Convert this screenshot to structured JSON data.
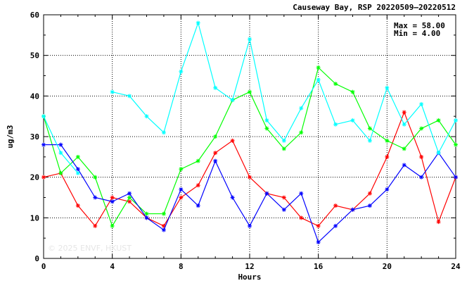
{
  "chart_data": {
    "type": "line",
    "title": "Causeway Bay, RSP 20220509–20220512",
    "xlabel": "Hours",
    "ylabel": "ug/m3",
    "xlim": [
      0,
      24
    ],
    "ylim": [
      0,
      60
    ],
    "x_ticks": [
      0,
      4,
      8,
      12,
      16,
      20,
      24
    ],
    "y_ticks": [
      0,
      10,
      20,
      30,
      40,
      50,
      60
    ],
    "grid": true,
    "stats": {
      "max": "Max = 58.00",
      "min": "Min =  4.00"
    },
    "watermark": "© 2025  ENVF, HKUST",
    "x": [
      0,
      1,
      2,
      3,
      4,
      5,
      6,
      7,
      8,
      9,
      10,
      11,
      12,
      13,
      14,
      15,
      16,
      17,
      18,
      19,
      20,
      21,
      22,
      23,
      24
    ],
    "series": [
      {
        "color": "#ff0000",
        "values": [
          20,
          21,
          13,
          8,
          15,
          14,
          10,
          8,
          15,
          18,
          26,
          29,
          20,
          16,
          15,
          10,
          8,
          13,
          12,
          16,
          25,
          36,
          25,
          9,
          20
        ]
      },
      {
        "color": "#00ff00",
        "values": [
          35,
          21,
          25,
          20,
          8,
          15,
          11,
          11,
          22,
          24,
          30,
          39,
          41,
          32,
          27,
          31,
          47,
          43,
          41,
          32,
          29,
          27,
          32,
          34,
          28
        ]
      },
      {
        "color": "#0000ff",
        "values": [
          28,
          28,
          22,
          15,
          14,
          16,
          10,
          7,
          17,
          13,
          24,
          15,
          8,
          16,
          12,
          16,
          4,
          8,
          12,
          13,
          17,
          23,
          20,
          26,
          20
        ]
      },
      {
        "color": "#00ffff",
        "values": [
          35,
          26,
          21,
          null,
          41,
          40,
          35,
          31,
          46,
          58,
          42,
          39,
          54,
          34,
          29,
          37,
          44,
          33,
          34,
          29,
          42,
          33,
          38,
          26,
          34
        ]
      }
    ]
  }
}
